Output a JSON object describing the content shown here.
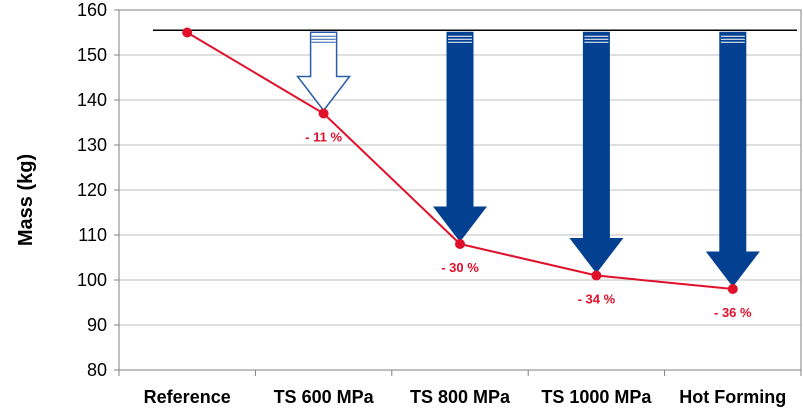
{
  "colors": {
    "series": "#e0102a",
    "arrow": "#034091",
    "arrow_outline": "#2a5fa8",
    "reference_line": "#000000",
    "gridline": "#bfbfbf"
  },
  "chart_data": {
    "type": "line",
    "title": "",
    "xlabel": "",
    "ylabel": "Mass (kg)",
    "ylim": [
      80,
      160
    ],
    "yticks": [
      80,
      90,
      100,
      110,
      120,
      130,
      140,
      150,
      160
    ],
    "yticklabels": [
      "80",
      "90",
      "100",
      "110",
      "120",
      "130",
      "140",
      "150",
      "160"
    ],
    "grid": true,
    "categories": [
      "Reference",
      "TS 600 MPa",
      "TS 800 MPa",
      "TS 1000 MPa",
      "Hot Forming"
    ],
    "series": [
      {
        "values": [
          155,
          137,
          108,
          101,
          98
        ]
      }
    ],
    "annotations": [
      "",
      "- 11 %",
      "- 30 %",
      "- 34 %",
      "- 36 %"
    ],
    "reference_value": 155.5,
    "arrows": [
      {
        "category": "TS 600 MPa",
        "style": "outline"
      },
      {
        "category": "TS 800 MPa",
        "style": "filled"
      },
      {
        "category": "TS 1000 MPa",
        "style": "filled"
      },
      {
        "category": "Hot Forming",
        "style": "filled"
      }
    ]
  }
}
